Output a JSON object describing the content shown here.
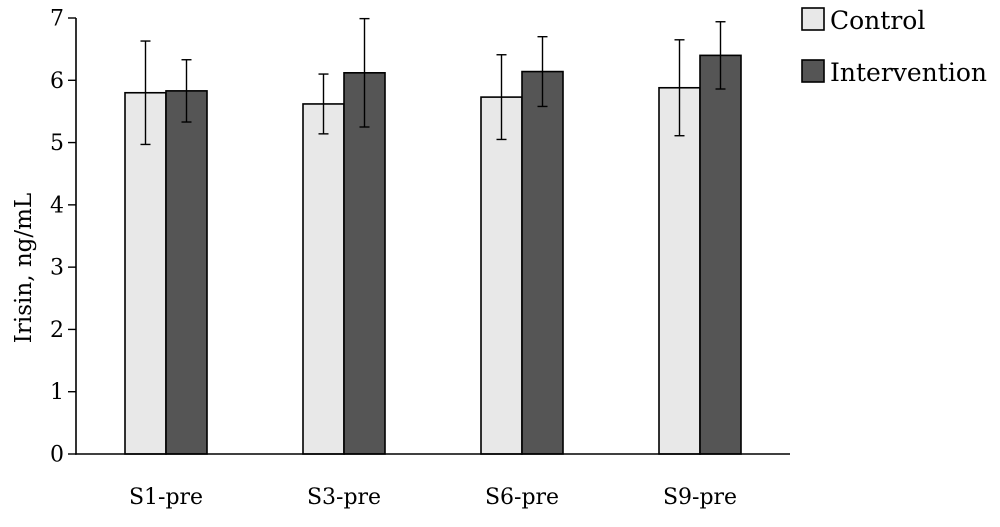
{
  "chart_data": {
    "type": "bar",
    "title": "",
    "xlabel": "",
    "ylabel": "Irisin, ng/mL",
    "ylim": [
      0,
      7
    ],
    "yticks": [
      0,
      1,
      2,
      3,
      4,
      5,
      6,
      7
    ],
    "categories": [
      "S1-pre",
      "S3-pre",
      "S6-pre",
      "S9-pre"
    ],
    "series": [
      {
        "name": "Control",
        "color": "#e8e8e8",
        "values": [
          5.8,
          5.62,
          5.73,
          5.88
        ],
        "error": [
          0.83,
          0.48,
          0.68,
          0.77
        ]
      },
      {
        "name": "Intervention",
        "color": "#555555",
        "values": [
          5.83,
          6.12,
          6.14,
          6.4
        ],
        "error": [
          0.5,
          0.87,
          0.56,
          0.54
        ]
      }
    ],
    "legend_position": "top-right",
    "grid": false
  }
}
